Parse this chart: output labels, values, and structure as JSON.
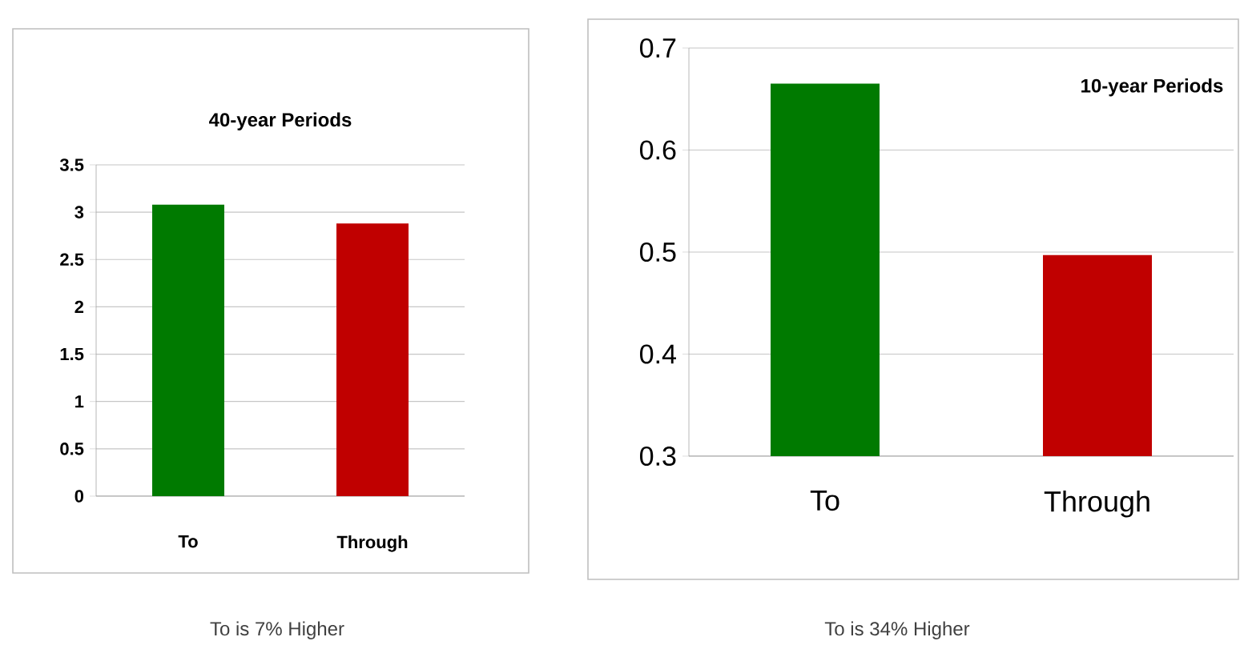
{
  "chart_data": [
    {
      "type": "bar",
      "title": "40-year Periods",
      "categories": [
        "To",
        "Through"
      ],
      "values": [
        3.08,
        2.88
      ],
      "colors": [
        "#007a00",
        "#c00000"
      ],
      "ylim": [
        0,
        3.5
      ],
      "yticks": [
        0,
        0.5,
        1,
        1.5,
        2,
        2.5,
        3,
        3.5
      ],
      "grid": "y",
      "annotations": [
        "To is 7% Higher"
      ]
    },
    {
      "type": "bar",
      "title": "10-year Periods",
      "categories": [
        "To",
        "Through"
      ],
      "values": [
        0.665,
        0.497
      ],
      "colors": [
        "#007a00",
        "#c00000"
      ],
      "ylim": [
        0.3,
        0.7
      ],
      "yticks": [
        0.3,
        0.4,
        0.5,
        0.6,
        0.7
      ],
      "grid": "y",
      "annotations": [
        "To is 34% Higher"
      ]
    }
  ]
}
